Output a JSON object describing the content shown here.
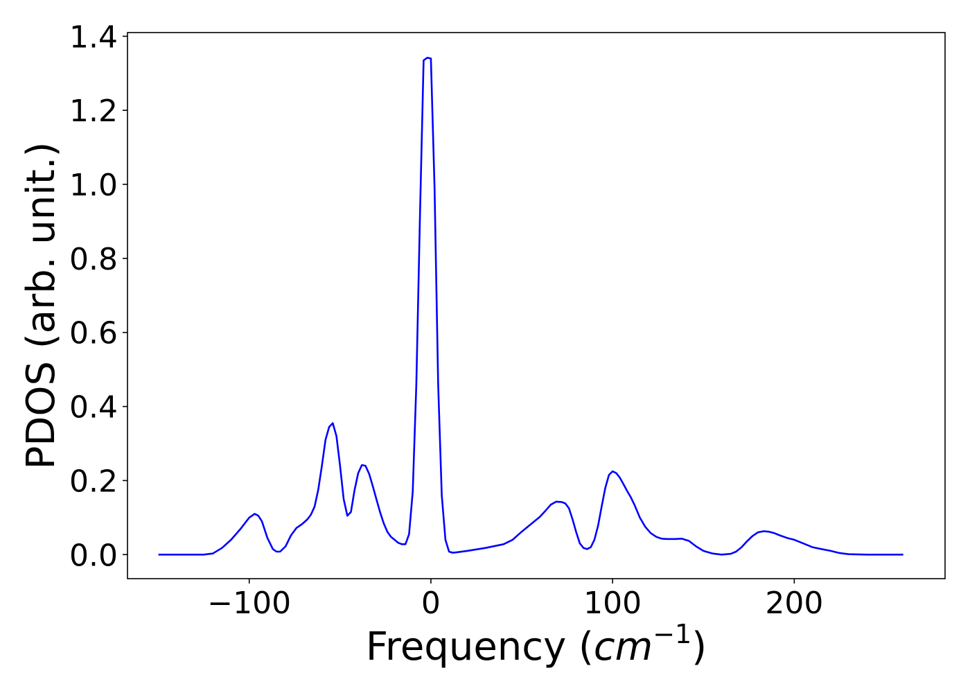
{
  "chart_data": {
    "type": "line",
    "title": "",
    "xlabel": {
      "prefix": "Frequency (",
      "italic": "cm",
      "superscript": "−1",
      "suffix": ")"
    },
    "ylabel": "PDOS (arb. unit.)",
    "xlim": [
      -167,
      283
    ],
    "ylim": [
      -0.065,
      1.41
    ],
    "xticks": [
      {
        "value": -100,
        "label": "−100"
      },
      {
        "value": 0,
        "label": "0"
      },
      {
        "value": 100,
        "label": "100"
      },
      {
        "value": 200,
        "label": "200"
      }
    ],
    "yticks": [
      {
        "value": 0.0,
        "label": "0.0"
      },
      {
        "value": 0.2,
        "label": "0.2"
      },
      {
        "value": 0.4,
        "label": "0.4"
      },
      {
        "value": 0.6,
        "label": "0.6"
      },
      {
        "value": 0.8,
        "label": "0.8"
      },
      {
        "value": 1.0,
        "label": "1.0"
      },
      {
        "value": 1.2,
        "label": "1.2"
      },
      {
        "value": 1.4,
        "label": "1.4"
      }
    ],
    "grid": false,
    "legend": false,
    "series": [
      {
        "color": "#0000ff",
        "x": [
          -150,
          -140,
          -130,
          -125,
          -120,
          -115,
          -110,
          -105,
          -100,
          -97,
          -95,
          -93,
          -90,
          -87,
          -85,
          -83,
          -80,
          -77,
          -74,
          -71,
          -68,
          -66,
          -64,
          -62,
          -60,
          -58,
          -56,
          -54,
          -52,
          -50,
          -48,
          -46,
          -44,
          -42,
          -40,
          -38,
          -36,
          -34,
          -32,
          -30,
          -28,
          -26,
          -24,
          -22,
          -20,
          -18,
          -16,
          -14,
          -12,
          -10,
          -8,
          -6,
          -4,
          -2,
          0,
          2,
          4,
          6,
          8,
          10,
          12,
          14,
          20,
          30,
          40,
          45,
          50,
          55,
          60,
          63,
          66,
          69,
          72,
          74,
          76,
          78,
          80,
          82,
          84,
          86,
          88,
          90,
          92,
          94,
          96,
          98,
          100,
          102,
          104,
          106,
          108,
          110,
          112,
          115,
          118,
          121,
          124,
          127,
          130,
          134,
          138,
          142,
          146,
          150,
          155,
          160,
          165,
          168,
          171,
          174,
          177,
          180,
          183,
          186,
          189,
          192,
          196,
          200,
          205,
          210,
          215,
          220,
          225,
          230,
          240,
          250,
          260
        ],
        "y": [
          0.0,
          0.0,
          0.0,
          0.0,
          0.003,
          0.018,
          0.04,
          0.068,
          0.1,
          0.11,
          0.105,
          0.09,
          0.045,
          0.015,
          0.008,
          0.008,
          0.022,
          0.052,
          0.072,
          0.082,
          0.095,
          0.108,
          0.13,
          0.175,
          0.24,
          0.31,
          0.345,
          0.355,
          0.32,
          0.24,
          0.15,
          0.105,
          0.115,
          0.175,
          0.22,
          0.242,
          0.24,
          0.218,
          0.185,
          0.15,
          0.115,
          0.085,
          0.062,
          0.048,
          0.04,
          0.032,
          0.028,
          0.028,
          0.055,
          0.17,
          0.46,
          0.92,
          1.335,
          1.342,
          1.34,
          0.99,
          0.46,
          0.16,
          0.04,
          0.008,
          0.005,
          0.006,
          0.01,
          0.018,
          0.028,
          0.04,
          0.062,
          0.082,
          0.102,
          0.118,
          0.135,
          0.143,
          0.142,
          0.138,
          0.125,
          0.095,
          0.06,
          0.03,
          0.018,
          0.015,
          0.02,
          0.04,
          0.078,
          0.13,
          0.18,
          0.215,
          0.225,
          0.22,
          0.208,
          0.19,
          0.172,
          0.155,
          0.135,
          0.1,
          0.075,
          0.058,
          0.048,
          0.043,
          0.042,
          0.042,
          0.043,
          0.037,
          0.022,
          0.01,
          0.003,
          0.0,
          0.002,
          0.008,
          0.02,
          0.036,
          0.05,
          0.06,
          0.063,
          0.062,
          0.058,
          0.052,
          0.045,
          0.04,
          0.03,
          0.02,
          0.015,
          0.01,
          0.004,
          0.001,
          0.0,
          0.0,
          0.0
        ]
      }
    ]
  }
}
